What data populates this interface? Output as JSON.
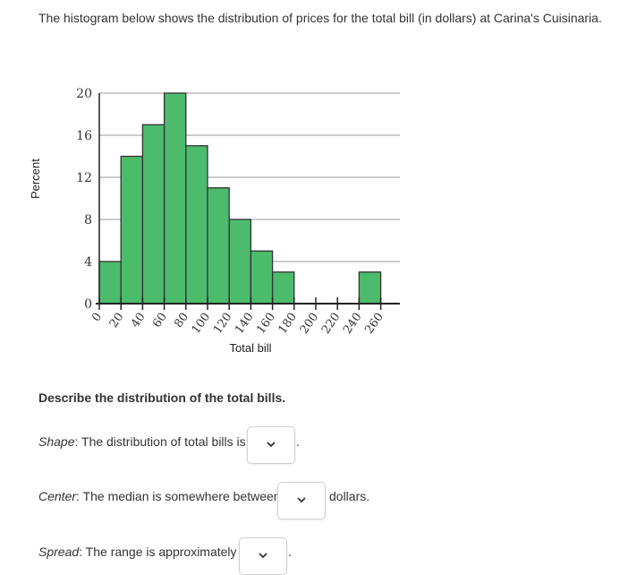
{
  "intro": "The histogram below shows the distribution of prices for the total bill (in dollars) at Carina's Cuisinaria.",
  "chart_data": {
    "type": "bar",
    "xlabel": "Total bill",
    "ylabel": "Percent",
    "bin_edges": [
      0,
      20,
      40,
      60,
      80,
      100,
      120,
      140,
      160,
      180,
      200,
      220,
      240,
      260,
      280
    ],
    "values": [
      4,
      14,
      17,
      20,
      15,
      11,
      8,
      5,
      3,
      0,
      0,
      0,
      3,
      0
    ],
    "xticks": [
      0,
      20,
      40,
      60,
      80,
      100,
      120,
      140,
      160,
      180,
      200,
      220,
      240,
      260
    ],
    "yticks": [
      0,
      4,
      8,
      12,
      16,
      20
    ],
    "ylim": [
      0,
      20
    ],
    "grid": true,
    "bar_color": "#4cbb6c",
    "bar_edge": "#333333"
  },
  "question": {
    "title": "Describe the distribution of the total bills.",
    "shape_label": "Shape",
    "shape_text": ": The distribution of total bills is",
    "shape_after": ".",
    "center_label": "Center",
    "center_text": ": The median is somewhere between",
    "center_after": "dollars.",
    "spread_label": "Spread",
    "spread_text": ": The range is approximately $",
    "spread_after": "."
  }
}
